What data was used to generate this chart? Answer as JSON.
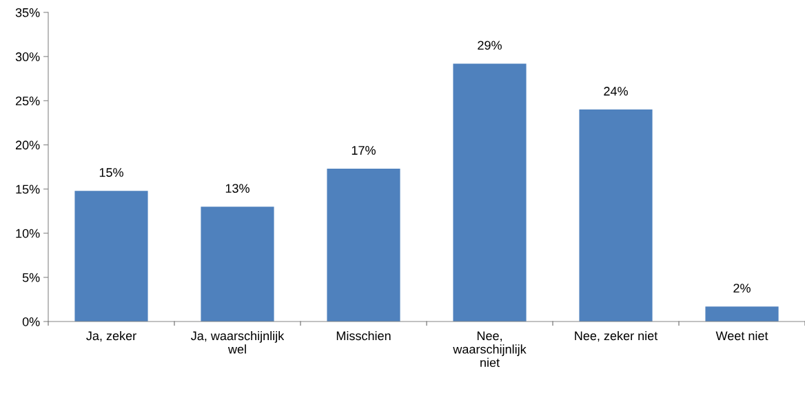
{
  "chart_data": {
    "type": "bar",
    "categories": [
      "Ja, zeker",
      "Ja, waarschijnlijk\nwel",
      "Misschien",
      "Nee,\nwaarschijnlijk\nniet",
      "Nee, zeker niet",
      "Weet niet"
    ],
    "values": [
      14.8,
      13.0,
      17.3,
      29.2,
      24.0,
      1.7
    ],
    "value_labels": [
      "15%",
      "13%",
      "17%",
      "29%",
      "24%",
      "2%"
    ],
    "color": "#4f81bd",
    "ylim": [
      0,
      35
    ],
    "yticks": [
      {
        "value": 0,
        "label": "0%"
      },
      {
        "value": 5,
        "label": "5%"
      },
      {
        "value": 10,
        "label": "10%"
      },
      {
        "value": 15,
        "label": "15%"
      },
      {
        "value": 20,
        "label": "20%"
      },
      {
        "value": 25,
        "label": "25%"
      },
      {
        "value": 30,
        "label": "30%"
      },
      {
        "value": 35,
        "label": "35%"
      }
    ],
    "grid": false,
    "legend": false
  }
}
